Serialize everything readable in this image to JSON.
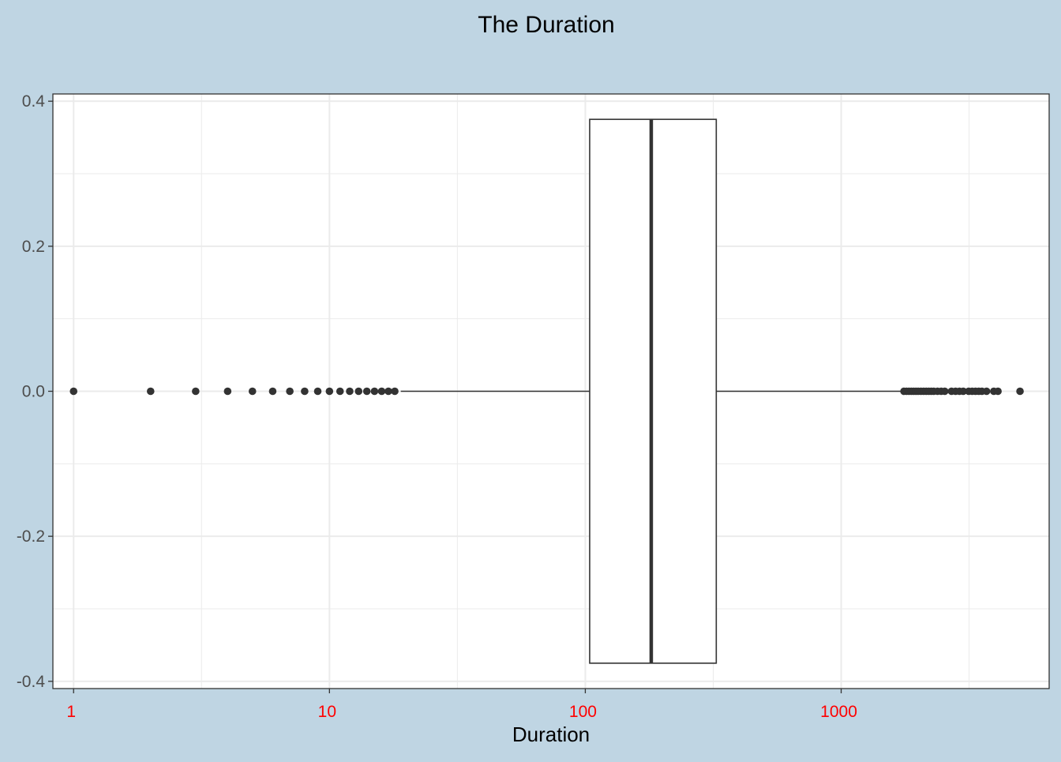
{
  "chart_data": {
    "type": "boxplot",
    "title": "The Duration",
    "xlabel": "Duration",
    "ylabel": "",
    "x_scale": "log10",
    "xlim": [
      0.83,
      6500
    ],
    "ylim": [
      -0.41,
      0.41
    ],
    "x_ticks": [
      {
        "value": 1,
        "label": "1"
      },
      {
        "value": 10,
        "label": "10"
      },
      {
        "value": 100,
        "label": "100"
      },
      {
        "value": 1000,
        "label": "1000"
      }
    ],
    "y_ticks": [
      {
        "value": 0.4,
        "label": "0.4"
      },
      {
        "value": 0.2,
        "label": "0.2"
      },
      {
        "value": 0.0,
        "label": "0.0"
      },
      {
        "value": -0.2,
        "label": "-0.2"
      },
      {
        "value": -0.4,
        "label": "-0.4"
      }
    ],
    "grid": true,
    "box": {
      "whisker_low": 19,
      "q1": 104,
      "median": 181,
      "q3": 325,
      "whisker_high": 1720,
      "y_center": 0.0,
      "half_width": 0.375
    },
    "outliers": [
      1,
      2,
      3,
      4,
      5,
      6,
      7,
      8,
      9,
      10,
      11,
      12,
      13,
      14,
      15,
      16,
      17,
      18,
      1760,
      1800,
      1840,
      1880,
      1920,
      1960,
      2000,
      2050,
      2100,
      2150,
      2200,
      2250,
      2300,
      2380,
      2460,
      2540,
      2700,
      2800,
      2900,
      3000,
      3150,
      3250,
      3350,
      3450,
      3550,
      3700,
      3950,
      4100,
      5000
    ],
    "colors": {
      "background": "#bfd5e3",
      "panel": "#ffffff",
      "grid": "#ebebeb",
      "ink": "#333333",
      "x_tick_label": "#ff0000",
      "y_tick_label": "#4d4d4d"
    }
  }
}
